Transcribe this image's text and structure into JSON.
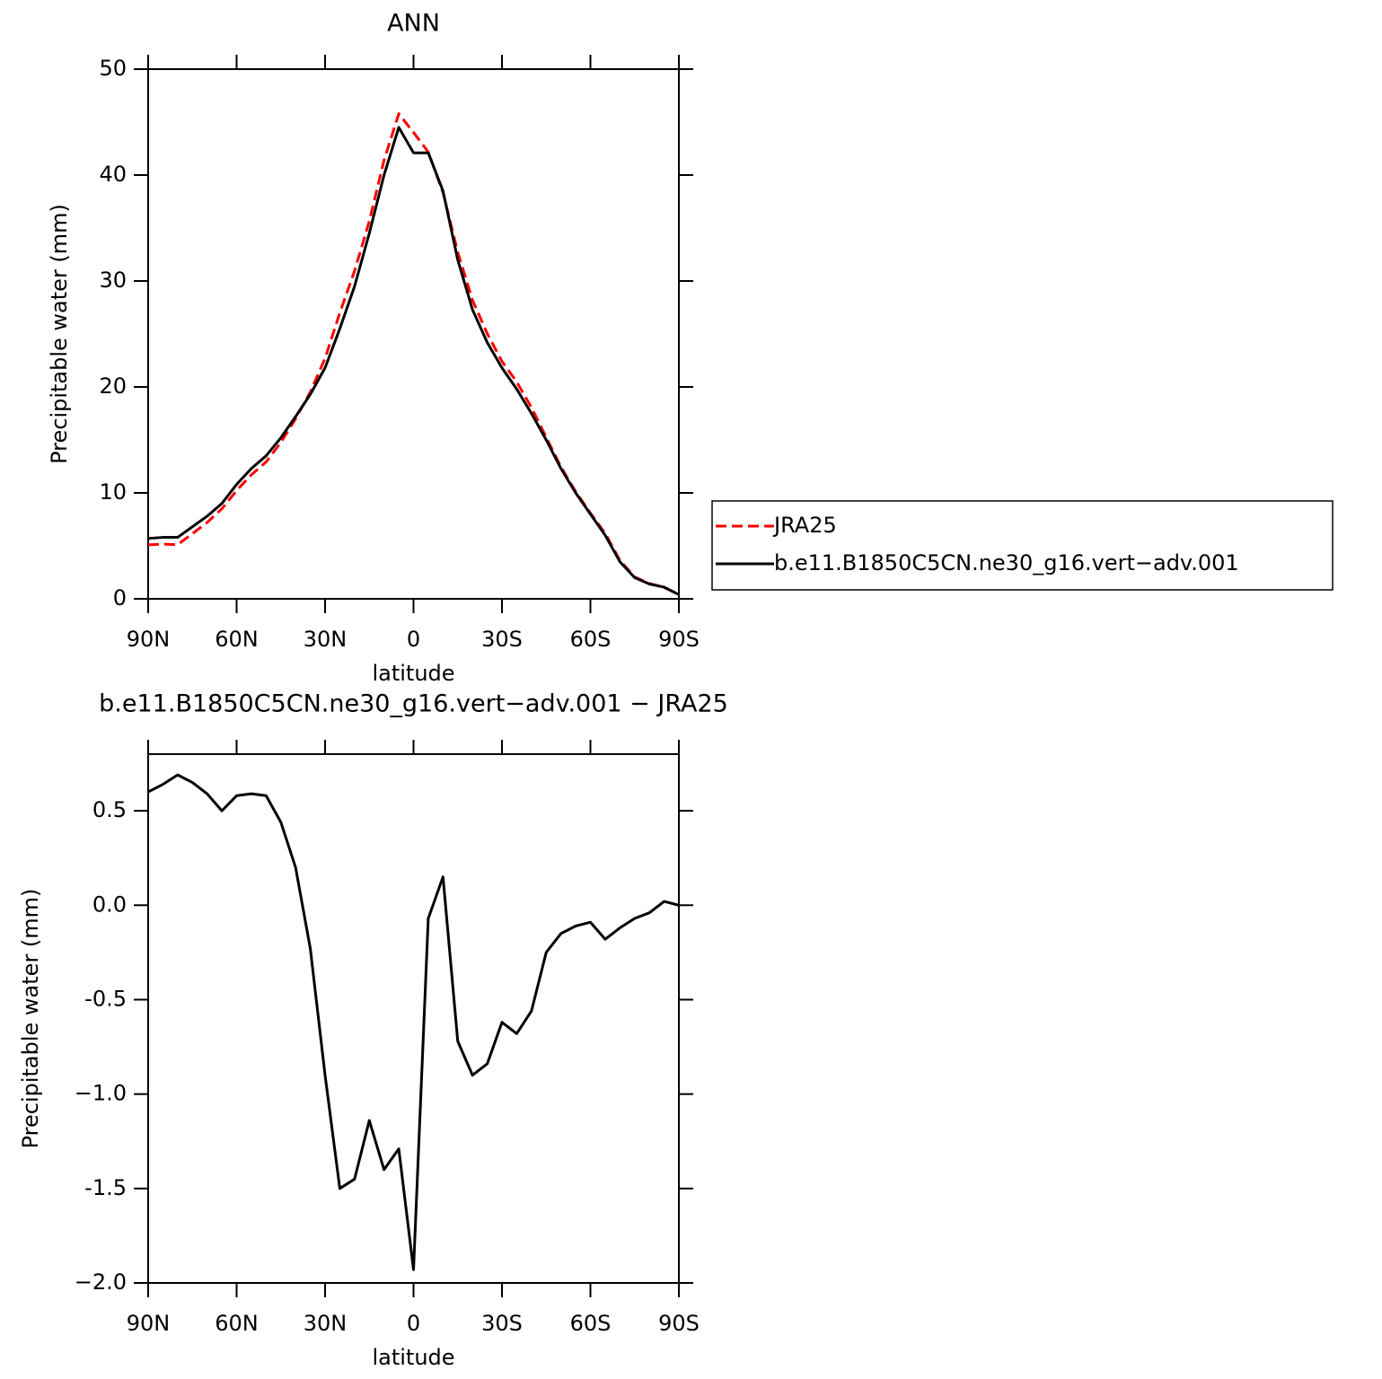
{
  "chart_data": [
    {
      "type": "line",
      "title": "ANN",
      "xlabel": "latitude",
      "ylabel": "Precipitable water (mm)",
      "x": [
        90,
        85,
        80,
        75,
        70,
        65,
        60,
        55,
        50,
        45,
        40,
        35,
        30,
        25,
        20,
        15,
        10,
        5,
        0,
        -5,
        -10,
        -15,
        -20,
        -25,
        -30,
        -35,
        -40,
        -45,
        -50,
        -55,
        -60,
        -65,
        -70,
        -75,
        -80,
        -85,
        -90
      ],
      "series": [
        {
          "name": "JRA25",
          "color": "#ff0000",
          "dash": true,
          "values": [
            5.1,
            5.16,
            5.11,
            6.15,
            7.21,
            8.5,
            10.22,
            11.71,
            12.92,
            14.76,
            17.0,
            19.53,
            22.7,
            27.0,
            30.95,
            35.64,
            41.4,
            45.79,
            44.03,
            42.17,
            38.35,
            32.72,
            28.2,
            25.04,
            22.42,
            20.48,
            18.06,
            15.25,
            12.45,
            10.11,
            8.09,
            6.18,
            3.62,
            2.07,
            1.44,
            1.08,
            0.4
          ]
        },
        {
          "name": "b.e11.B1850C5CN.ne30_g16.vert−adv.001",
          "color": "#000000",
          "dash": false,
          "values": [
            5.7,
            5.8,
            5.8,
            6.8,
            7.8,
            9.0,
            10.8,
            12.3,
            13.5,
            15.2,
            17.2,
            19.3,
            21.8,
            25.5,
            29.5,
            34.5,
            40,
            44.5,
            42.1,
            42.1,
            38.5,
            32,
            27.3,
            24.2,
            21.8,
            19.8,
            17.5,
            15,
            12.3,
            10,
            8,
            6,
            3.5,
            2,
            1.4,
            1.1,
            0.4
          ]
        }
      ],
      "xlim": [
        90,
        -90
      ],
      "xticks": [
        {
          "value": 90,
          "label": "90N"
        },
        {
          "value": 60,
          "label": "60N"
        },
        {
          "value": 30,
          "label": "30N"
        },
        0,
        {
          "value": -30,
          "label": "30S"
        },
        {
          "value": -60,
          "label": "60S"
        },
        {
          "value": -90,
          "label": "90S"
        }
      ],
      "ylim": [
        0,
        50
      ],
      "yticks": [
        0,
        10,
        20,
        30,
        40,
        50
      ],
      "legend": "right"
    },
    {
      "type": "line",
      "title": "b.e11.B1850C5CN.ne30_g16.vert−adv.001 − JRA25",
      "xlabel": "latitude",
      "ylabel": "Precipitable water (mm)",
      "x": [
        90,
        85,
        80,
        75,
        70,
        65,
        60,
        55,
        50,
        45,
        40,
        35,
        30,
        25,
        20,
        15,
        10,
        5,
        0,
        -5,
        -10,
        -15,
        -20,
        -25,
        -30,
        -35,
        -40,
        -45,
        -50,
        -55,
        -60,
        -65,
        -70,
        -75,
        -80,
        -85,
        -90
      ],
      "color": "#000000",
      "values": [
        0.6,
        0.64,
        0.69,
        0.65,
        0.59,
        0.5,
        0.58,
        0.59,
        0.58,
        0.44,
        0.2,
        -0.23,
        -0.9,
        -1.5,
        -1.45,
        -1.14,
        -1.4,
        -1.29,
        -1.93,
        -0.07,
        0.15,
        -0.72,
        -0.9,
        -0.84,
        -0.62,
        -0.68,
        -0.56,
        -0.25,
        -0.15,
        -0.11,
        -0.09,
        -0.18,
        -0.12,
        -0.07,
        -0.04,
        0.02,
        0.0
      ],
      "xlim": [
        90,
        -90
      ],
      "xticks": [
        {
          "value": 90,
          "label": "90N"
        },
        {
          "value": 60,
          "label": "60N"
        },
        {
          "value": 30,
          "label": "30N"
        },
        0,
        {
          "value": -30,
          "label": "30S"
        },
        {
          "value": -60,
          "label": "60S"
        },
        {
          "value": -90,
          "label": "90S"
        }
      ],
      "ylim": [
        -2.0,
        0.8
      ],
      "yticks": [
        {
          "value": -2,
          "label": "−2.0"
        },
        -1.5,
        {
          "value": -1,
          "label": "−1.0"
        },
        -0.5,
        {
          "value": 0,
          "label": "0.0"
        },
        0.5
      ]
    }
  ]
}
